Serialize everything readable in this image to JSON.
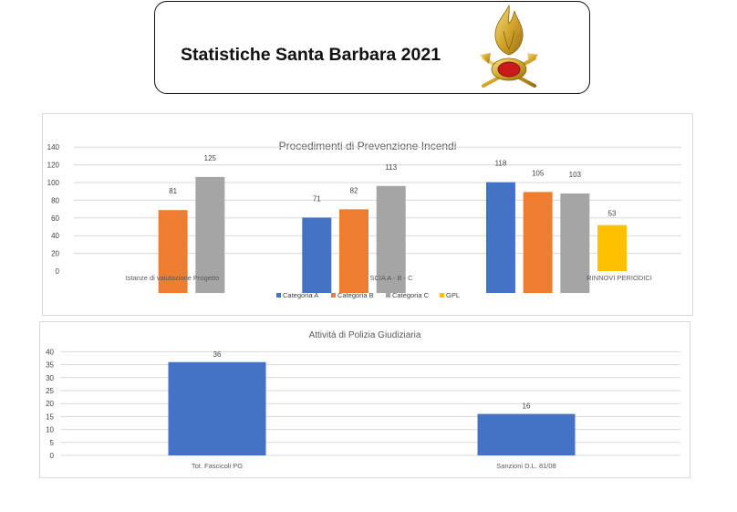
{
  "header": {
    "title": "Statistiche Santa Barbara 2021",
    "logo_icon": "vigili-del-fuoco-flame-emblem-icon"
  },
  "colors": {
    "categoria_a": "#4472C4",
    "categoria_b": "#ED7D31",
    "categoria_c": "#A5A5A5",
    "gpl": "#FFC000",
    "gridline": "#D9D9D9",
    "text": "#595959"
  },
  "chart_data": [
    {
      "type": "bar",
      "title": "Procedimenti di Prevenzione Incendi",
      "categories": [
        "Istanze di valutazione Progetto",
        "SCIA A - B - C",
        "RINNOVI PERIODICI"
      ],
      "series": [
        {
          "name": "Categoria A",
          "values": [
            null,
            71,
            118
          ]
        },
        {
          "name": "Categoria B",
          "values": [
            81,
            82,
            105
          ]
        },
        {
          "name": "Categoria C",
          "values": [
            125,
            113,
            103
          ]
        },
        {
          "name": "GPL",
          "values": [
            null,
            null,
            53
          ]
        }
      ],
      "y_ticks": [
        "0",
        "20",
        "40",
        "60",
        "80",
        "100",
        "120",
        "140"
      ],
      "ylim": [
        0,
        140
      ],
      "grid": true,
      "legend_position": "bottom"
    },
    {
      "type": "bar",
      "title": "Attività di Polizia Giudiziaria",
      "categories": [
        "Tot. Fascicoli PG",
        "Sanzioni D.L. 81/08"
      ],
      "series": [
        {
          "values": [
            36,
            16
          ]
        }
      ],
      "y_ticks": [
        "0",
        "5",
        "10",
        "15",
        "20",
        "25",
        "30",
        "35",
        "40"
      ],
      "ylim": [
        0,
        40
      ],
      "grid": true
    }
  ]
}
